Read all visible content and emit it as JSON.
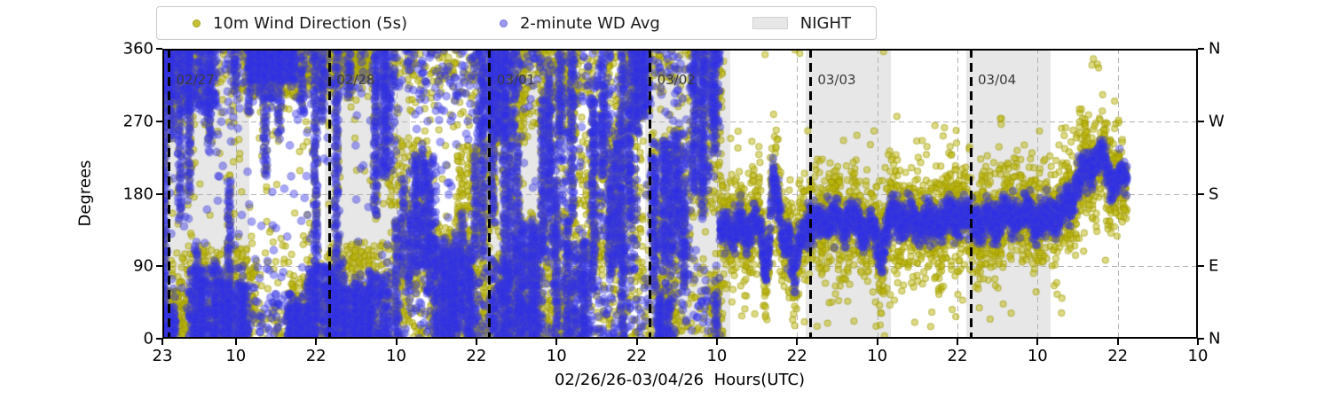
{
  "legend": {
    "items": [
      {
        "label": "10m Wind Direction (5s)",
        "marker": "dot",
        "color": "#c6c138",
        "edge": "#a5a117"
      },
      {
        "label": "2-minute WD Avg",
        "marker": "dot",
        "color": "#9a9af2",
        "edge": "#7878d8"
      },
      {
        "label": "NIGHT",
        "marker": "swatch",
        "color": "#e7e7e7",
        "edge": "#d2d2d2"
      }
    ]
  },
  "axes": {
    "ylabel": "Degrees",
    "xlabel": "02/26/26-03/04/26  Hours(UTC)",
    "x_total_hours": 155,
    "x_start": "02/26 23:00 UTC",
    "yticks": [
      {
        "deg": 0,
        "label": "0",
        "compass": "N"
      },
      {
        "deg": 90,
        "label": "90",
        "compass": "E"
      },
      {
        "deg": 180,
        "label": "180",
        "compass": "S"
      },
      {
        "deg": 270,
        "label": "270",
        "compass": "W"
      },
      {
        "deg": 360,
        "label": "360",
        "compass": "N"
      }
    ],
    "xticks": [
      {
        "h": 0,
        "label": "23"
      },
      {
        "h": 11,
        "label": "10"
      },
      {
        "h": 23,
        "label": "22"
      },
      {
        "h": 35,
        "label": "10"
      },
      {
        "h": 47,
        "label": "22"
      },
      {
        "h": 59,
        "label": "10"
      },
      {
        "h": 71,
        "label": "22"
      },
      {
        "h": 83,
        "label": "10"
      },
      {
        "h": 95,
        "label": "22"
      },
      {
        "h": 107,
        "label": "10"
      },
      {
        "h": 119,
        "label": "22"
      },
      {
        "h": 131,
        "label": "10"
      },
      {
        "h": 143,
        "label": "22"
      },
      {
        "h": 155,
        "label": "10"
      }
    ]
  },
  "day_lines": [
    {
      "h": 1,
      "label": "02/27"
    },
    {
      "h": 25,
      "label": "02/28"
    },
    {
      "h": 49,
      "label": "03/01"
    },
    {
      "h": 73,
      "label": "03/02"
    },
    {
      "h": 97,
      "label": "03/03"
    },
    {
      "h": 121,
      "label": "03/04"
    }
  ],
  "night_bands": [
    [
      0,
      13.0
    ],
    [
      24.3,
      37.1
    ],
    [
      48.3,
      61.0
    ],
    [
      72.3,
      85.0
    ],
    [
      96.3,
      109.1
    ],
    [
      120.4,
      133.0
    ]
  ],
  "colors": {
    "yellow_fill": "rgba(189,184,14,0.50)",
    "yellow_edge": "rgba(156,151,0,0.55)",
    "blue_fill": "rgba(45,45,232,0.42)",
    "blue_edge": "rgba(70,70,205,0.35)",
    "night": "#e7e7e7",
    "grid": "#b3b3b3",
    "day_line": "#000000",
    "day_label": "#3a3a3a"
  },
  "chart_data": {
    "type": "scatter",
    "title": "",
    "xlabel": "02/26/26-03/04/26  Hours(UTC)",
    "ylabel": "Degrees",
    "ylim": [
      0,
      360
    ],
    "x_range_hours": [
      0,
      155
    ],
    "grid": true,
    "legend_position": "top",
    "series": [
      {
        "name": "10m Wind Direction (5s)",
        "color": "#bcb80e",
        "marker": "circle",
        "radius": 3.5,
        "cadence_s": 5
      },
      {
        "name": "2-minute WD Avg",
        "color": "#2d2de8",
        "marker": "circle",
        "radius": 4.3,
        "cadence_s": 120
      }
    ],
    "chaos": {
      "t0": 0,
      "t1": 83.5,
      "bg_y_per_h": 22,
      "bg_b_per_h": 16,
      "bg_modes": [
        [
          0.45,
          35,
          35
        ],
        [
          0.35,
          330,
          30
        ],
        [
          0.2,
          180,
          110
        ]
      ],
      "columns": [
        [
          0.3,
          0,
          360
        ],
        [
          1.5,
          250,
          360
        ],
        [
          2.5,
          150,
          360
        ],
        [
          4,
          180,
          360
        ],
        [
          5,
          0,
          120
        ],
        [
          6,
          0,
          90
        ],
        [
          7,
          240,
          360
        ],
        [
          8,
          0,
          100
        ],
        [
          9,
          0,
          80
        ],
        [
          10,
          0,
          200
        ],
        [
          11,
          300,
          360
        ],
        [
          12,
          0,
          70
        ],
        [
          13,
          280,
          360
        ],
        [
          14.5,
          300,
          360
        ],
        [
          15.5,
          200,
          360
        ],
        [
          16.5,
          290,
          360
        ],
        [
          17.5,
          250,
          360
        ],
        [
          19,
          0,
          60
        ],
        [
          20,
          0,
          50
        ],
        [
          21,
          280,
          360
        ],
        [
          22,
          0,
          90
        ],
        [
          23,
          0,
          360
        ],
        [
          24,
          270,
          360
        ],
        [
          25,
          0,
          80
        ],
        [
          26,
          0,
          360
        ],
        [
          27,
          0,
          100
        ],
        [
          28,
          300,
          360
        ],
        [
          29,
          0,
          70
        ],
        [
          30,
          0,
          60
        ],
        [
          31,
          0,
          90
        ],
        [
          32,
          150,
          360
        ],
        [
          33.5,
          200,
          360
        ],
        [
          35,
          0,
          150
        ],
        [
          36,
          80,
          200
        ],
        [
          37,
          60,
          160
        ],
        [
          38,
          80,
          230
        ],
        [
          39,
          90,
          240
        ],
        [
          40,
          60,
          200
        ],
        [
          41,
          0,
          130
        ],
        [
          42,
          0,
          130
        ],
        [
          43,
          0,
          120
        ],
        [
          44,
          0,
          130
        ],
        [
          45,
          30,
          160
        ],
        [
          46,
          0,
          120
        ],
        [
          47,
          100,
          230
        ],
        [
          48,
          100,
          360
        ],
        [
          49.5,
          150,
          360
        ],
        [
          50.5,
          250,
          360
        ],
        [
          51.2,
          0,
          360
        ],
        [
          52,
          0,
          250
        ],
        [
          53,
          0,
          250
        ],
        [
          54,
          0,
          150
        ],
        [
          55,
          0,
          150
        ],
        [
          56,
          0,
          130
        ],
        [
          57,
          100,
          300
        ],
        [
          58,
          150,
          330
        ],
        [
          59,
          0,
          200
        ],
        [
          59.6,
          250,
          360
        ],
        [
          60.5,
          0,
          150
        ],
        [
          61.5,
          150,
          360
        ],
        [
          63,
          0,
          130
        ],
        [
          64.5,
          60,
          300
        ],
        [
          66,
          200,
          360
        ],
        [
          67,
          80,
          200
        ],
        [
          68,
          100,
          250
        ],
        [
          69,
          0,
          360
        ],
        [
          70,
          150,
          300
        ],
        [
          71,
          250,
          360
        ],
        [
          72,
          280,
          360
        ],
        [
          73.5,
          60,
          230
        ],
        [
          74.5,
          0,
          60
        ],
        [
          75.2,
          100,
          250
        ],
        [
          76,
          90,
          250
        ],
        [
          77,
          120,
          260
        ],
        [
          78,
          60,
          180
        ],
        [
          79.5,
          180,
          360
        ],
        [
          81,
          150,
          360
        ],
        [
          82.5,
          230,
          360
        ],
        [
          83,
          0,
          60
        ]
      ],
      "clusters_yellow": [
        [
          0,
          6,
          290,
          360
        ],
        [
          0,
          3,
          0,
          60
        ],
        [
          3,
          9,
          0,
          110
        ],
        [
          9,
          14,
          0,
          120
        ],
        [
          12,
          21,
          300,
          360
        ],
        [
          19,
          25,
          0,
          70
        ],
        [
          21,
          26,
          310,
          360
        ],
        [
          25,
          34,
          0,
          120
        ],
        [
          26,
          31,
          320,
          360
        ],
        [
          34,
          40,
          60,
          250
        ],
        [
          40,
          49,
          0,
          140
        ],
        [
          44,
          50,
          130,
          240
        ],
        [
          49,
          55,
          240,
          360
        ],
        [
          49,
          56,
          0,
          110
        ],
        [
          55,
          62,
          0,
          160
        ],
        [
          56,
          62,
          250,
          360
        ],
        [
          62,
          69,
          90,
          260
        ],
        [
          67,
          72,
          60,
          300
        ],
        [
          69,
          73,
          280,
          360
        ],
        [
          73,
          79,
          60,
          260
        ],
        [
          74,
          77,
          0,
          70
        ],
        [
          79,
          84,
          150,
          360
        ],
        [
          82,
          84,
          0,
          70
        ]
      ],
      "clusters_blue": [
        [
          0,
          2,
          300,
          360
        ],
        [
          0,
          2,
          0,
          40
        ],
        [
          3,
          8,
          280,
          360
        ],
        [
          4,
          9,
          0,
          90
        ],
        [
          9,
          13,
          0,
          70
        ],
        [
          13,
          20,
          320,
          360
        ],
        [
          19,
          22,
          0,
          40
        ],
        [
          22,
          26,
          0,
          90
        ],
        [
          25,
          31,
          0,
          70
        ],
        [
          31,
          34,
          0,
          80
        ],
        [
          32,
          35,
          200,
          360
        ],
        [
          37,
          41,
          90,
          230
        ],
        [
          41,
          47,
          0,
          110
        ],
        [
          47,
          53,
          250,
          360
        ],
        [
          49,
          52,
          0,
          100
        ],
        [
          53,
          57,
          0,
          140
        ],
        [
          57,
          61,
          100,
          300
        ],
        [
          61,
          64,
          0,
          120
        ],
        [
          64,
          67,
          120,
          330
        ],
        [
          67,
          71,
          80,
          280
        ],
        [
          70,
          73,
          270,
          360
        ],
        [
          73,
          76,
          90,
          250
        ],
        [
          74,
          76,
          0,
          50
        ],
        [
          76,
          79,
          100,
          260
        ],
        [
          79,
          82,
          180,
          360
        ],
        [
          82,
          83.5,
          250,
          360
        ]
      ]
    },
    "settled": {
      "t0": 83.5,
      "t1": 144.4,
      "yellow_per_h": 55,
      "blue_per_h": 42,
      "yellow_sd": 33,
      "blue_sd": 11,
      "outlier_per_h": 1.5,
      "center_path": [
        [
          83.5,
          125
        ],
        [
          84.5,
          138
        ],
        [
          85.5,
          128
        ],
        [
          86.5,
          142
        ],
        [
          87.5,
          132
        ],
        [
          88.5,
          148
        ],
        [
          89.5,
          135
        ],
        [
          90.3,
          85
        ],
        [
          90.8,
          115
        ],
        [
          91.4,
          200
        ],
        [
          92,
          165
        ],
        [
          92.6,
          130
        ],
        [
          93.2,
          112
        ],
        [
          93.8,
          135
        ],
        [
          94.6,
          72
        ],
        [
          95.3,
          118
        ],
        [
          96,
          140
        ],
        [
          97,
          150
        ],
        [
          98,
          142
        ],
        [
          99,
          148
        ],
        [
          100,
          140
        ],
        [
          101,
          146
        ],
        [
          102,
          138
        ],
        [
          103,
          146
        ],
        [
          104,
          148
        ],
        [
          105,
          140
        ],
        [
          106,
          144
        ],
        [
          107,
          118
        ],
        [
          107.6,
          102
        ],
        [
          108.2,
          132
        ],
        [
          109,
          148
        ],
        [
          110,
          150
        ],
        [
          111,
          144
        ],
        [
          112,
          148
        ],
        [
          113,
          142
        ],
        [
          114,
          150
        ],
        [
          115,
          143
        ],
        [
          116,
          147
        ],
        [
          117,
          141
        ],
        [
          118,
          149
        ],
        [
          119,
          144
        ],
        [
          120,
          150
        ],
        [
          121,
          147
        ],
        [
          122,
          150
        ],
        [
          123,
          146
        ],
        [
          124,
          152
        ],
        [
          125,
          148
        ],
        [
          126,
          151
        ],
        [
          127,
          147
        ],
        [
          128,
          154
        ],
        [
          129,
          149
        ],
        [
          130,
          151
        ],
        [
          131,
          147
        ],
        [
          132,
          153
        ],
        [
          133,
          158
        ],
        [
          134,
          151
        ],
        [
          135,
          161
        ],
        [
          136,
          170
        ],
        [
          137,
          186
        ],
        [
          138,
          204
        ],
        [
          139,
          216
        ],
        [
          140,
          226
        ],
        [
          140.6,
          230
        ],
        [
          141.2,
          218
        ],
        [
          141.8,
          204
        ],
        [
          142.5,
          196
        ],
        [
          143.2,
          201
        ],
        [
          143.8,
          192
        ],
        [
          144.4,
          196
        ]
      ]
    }
  }
}
